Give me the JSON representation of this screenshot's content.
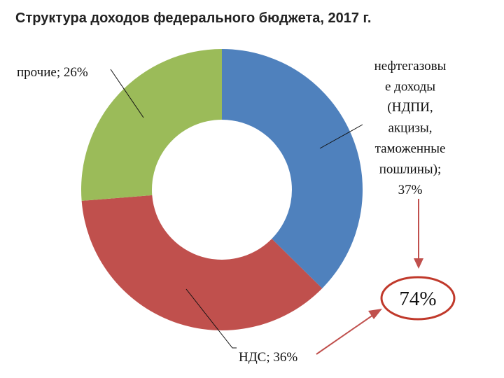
{
  "chart_data": {
    "type": "pie",
    "variant": "donut",
    "title": "Структура доходов федерального бюджета, 2017 г.",
    "slices": [
      {
        "label_lines": [
          "нефтегазовы",
          "е доходы",
          "(НДПИ,",
          "акцизы,",
          "таможенные",
          "пошлины);",
          "37%"
        ],
        "value": 37,
        "color": "#4f81bd"
      },
      {
        "label_lines": [
          "НДС; 36%"
        ],
        "value": 36,
        "color": "#c0504d"
      },
      {
        "label_lines": [
          "прочие; 26%"
        ],
        "value": 26,
        "color": "#9bbb59"
      }
    ],
    "callout": {
      "text": "74%",
      "ring_color": "#c0392b",
      "arrow_color": "#c0504d"
    }
  }
}
